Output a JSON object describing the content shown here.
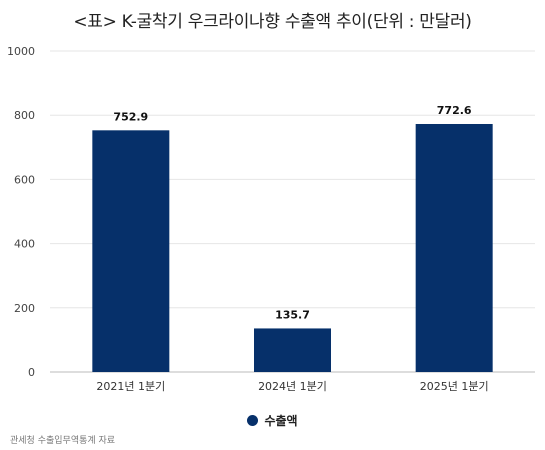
{
  "chart_data": {
    "type": "bar",
    "title": "<표> K-굴착기 우크라이나향 수출액 추이(단위 : 만달러)",
    "categories": [
      "2021년 1분기",
      "2024년 1분기",
      "2025년 1분기"
    ],
    "series": [
      {
        "name": "수출액",
        "values": [
          752.9,
          135.7,
          772.6
        ]
      }
    ],
    "data_labels": [
      "752.9",
      "135.7",
      "772.6"
    ],
    "ylim": [
      0,
      1000
    ],
    "yticks": [
      0,
      200,
      400,
      600,
      800,
      1000
    ],
    "grid": true,
    "legend_position": "bottom-center",
    "bar_color": "#06306a",
    "source": "관세청 수출입무역통계 자료"
  }
}
